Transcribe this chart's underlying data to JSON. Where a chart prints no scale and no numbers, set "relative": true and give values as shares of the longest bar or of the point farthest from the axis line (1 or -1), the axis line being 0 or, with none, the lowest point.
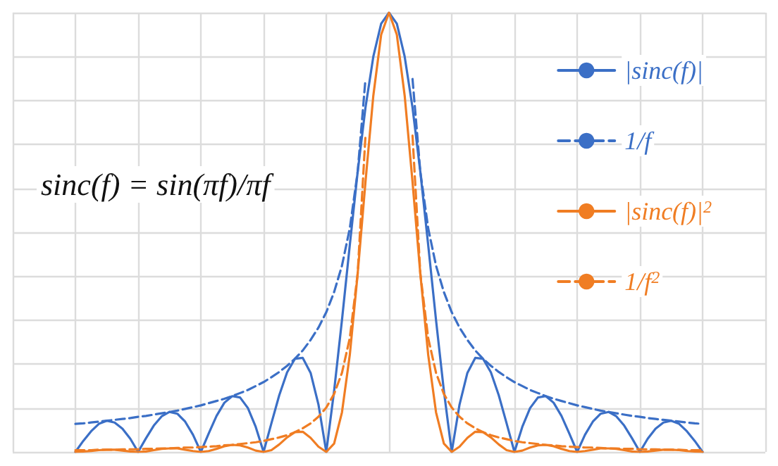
{
  "chart_data": {
    "type": "line",
    "relative": true,
    "grid": true,
    "legend": "right",
    "marker": "none",
    "categories": [
      null,
      null,
      null,
      null,
      null,
      null,
      null,
      null,
      null,
      null,
      null,
      null,
      null,
      null,
      null,
      null,
      null,
      null,
      null,
      null,
      null,
      null,
      null,
      null,
      null,
      null,
      null,
      null,
      null,
      null,
      null,
      null,
      null,
      null,
      null,
      null,
      null,
      null,
      null,
      null,
      null,
      null,
      null,
      null,
      null,
      null,
      null,
      null,
      null,
      null,
      null,
      null,
      null,
      null,
      null,
      null,
      null,
      null,
      null,
      null,
      null,
      null,
      null,
      null,
      null,
      null,
      null,
      null,
      null,
      null,
      null,
      null,
      null,
      null,
      null,
      null,
      null,
      null,
      null,
      null,
      null,
      null,
      null,
      null,
      null,
      null,
      null,
      null,
      null,
      null,
      null,
      null,
      null,
      null,
      null,
      null,
      null
    ],
    "annotations": [
      "sinc(f) = sin(πf)/πf"
    ],
    "series": [
      {
        "name": "|sinc(f)|",
        "color": "#3b6fc6",
        "line_style": "solid",
        "values": [
          null,
          null,
          null,
          null,
          null,
          null,
          null,
          null,
          0,
          0.025,
          0.047,
          0.064,
          0.071,
          0.067,
          0.053,
          0.03,
          0,
          0.031,
          0.06,
          0.081,
          0.091,
          0.087,
          0.069,
          0.039,
          0,
          0.042,
          0.082,
          0.112,
          0.127,
          0.124,
          0.1,
          0.057,
          0,
          0.065,
          0.129,
          0.181,
          0.212,
          0.214,
          0.18,
          0.108,
          0,
          0.139,
          0.3,
          0.471,
          0.637,
          0.784,
          0.9,
          0.975,
          1,
          0.975,
          0.9,
          0.784,
          0.637,
          0.471,
          0.3,
          0.139,
          0,
          0.108,
          0.18,
          0.214,
          0.212,
          0.181,
          0.129,
          0.065,
          0,
          0.057,
          0.1,
          0.124,
          0.127,
          0.112,
          0.082,
          0.042,
          0,
          0.039,
          0.069,
          0.087,
          0.091,
          0.081,
          0.06,
          0.031,
          0,
          0.03,
          0.053,
          0.067,
          0.071,
          0.064,
          0.047,
          0.025,
          0,
          null,
          null,
          null,
          null,
          null,
          null,
          null,
          null
        ]
      },
      {
        "name": "1/f",
        "color": "#3b6fc6",
        "line_style": "dashed",
        "values": [
          null,
          null,
          null,
          null,
          null,
          null,
          null,
          null,
          0.064,
          0.065,
          0.067,
          0.069,
          0.071,
          0.073,
          0.075,
          0.077,
          0.08,
          0.082,
          0.085,
          0.088,
          0.091,
          0.094,
          0.098,
          0.102,
          0.106,
          0.111,
          0.116,
          0.121,
          0.127,
          0.134,
          0.141,
          0.15,
          0.159,
          0.17,
          0.182,
          0.196,
          0.212,
          0.231,
          0.255,
          0.283,
          0.318,
          0.364,
          0.424,
          0.509,
          0.637,
          0.849,
          null,
          null,
          null,
          null,
          null,
          0.849,
          0.637,
          0.509,
          0.424,
          0.364,
          0.318,
          0.283,
          0.255,
          0.231,
          0.212,
          0.196,
          0.182,
          0.17,
          0.159,
          0.15,
          0.141,
          0.134,
          0.127,
          0.121,
          0.116,
          0.111,
          0.106,
          0.102,
          0.098,
          0.094,
          0.091,
          0.088,
          0.085,
          0.082,
          0.08,
          0.077,
          0.075,
          0.073,
          0.071,
          0.069,
          0.067,
          0.065,
          0.064,
          null,
          null,
          null,
          null,
          null,
          null,
          null,
          null
        ]
      },
      {
        "name": "|sinc(f)|$^{2}$",
        "color": "#f07d23",
        "line_style": "solid",
        "values": [
          null,
          null,
          null,
          null,
          null,
          null,
          null,
          null,
          0,
          0.001,
          0.002,
          0.004,
          0.005,
          0.005,
          0.003,
          0.001,
          0,
          0.001,
          0.004,
          0.007,
          0.008,
          0.008,
          0.005,
          0.002,
          0,
          0.002,
          0.007,
          0.013,
          0.016,
          0.015,
          0.01,
          0.003,
          0,
          0.004,
          0.017,
          0.033,
          0.045,
          0.046,
          0.032,
          0.012,
          0,
          0.019,
          0.09,
          0.221,
          0.405,
          0.615,
          0.811,
          0.95,
          1,
          0.95,
          0.811,
          0.615,
          0.405,
          0.221,
          0.09,
          0.019,
          0,
          0.012,
          0.032,
          0.046,
          0.045,
          0.033,
          0.017,
          0.004,
          0,
          0.003,
          0.01,
          0.015,
          0.016,
          0.013,
          0.007,
          0.002,
          0,
          0.002,
          0.005,
          0.008,
          0.008,
          0.007,
          0.004,
          0.001,
          0,
          0.001,
          0.003,
          0.005,
          0.005,
          0.004,
          0.002,
          0.001,
          0,
          null,
          null,
          null,
          null,
          null,
          null,
          null,
          null
        ]
      },
      {
        "name": "1/f$^{2}$",
        "color": "#f07d23",
        "line_style": "dashed",
        "values": [
          null,
          null,
          null,
          null,
          null,
          null,
          null,
          null,
          0.004,
          0.004,
          0.004,
          0.005,
          0.005,
          0.005,
          0.006,
          0.006,
          0.006,
          0.007,
          0.007,
          0.008,
          0.008,
          0.009,
          0.01,
          0.01,
          0.011,
          0.012,
          0.013,
          0.015,
          0.016,
          0.018,
          0.02,
          0.022,
          0.025,
          0.029,
          0.033,
          0.038,
          0.045,
          0.054,
          0.065,
          0.08,
          0.101,
          0.132,
          0.18,
          0.259,
          0.405,
          0.72,
          null,
          null,
          null,
          null,
          null,
          0.72,
          0.405,
          0.259,
          0.18,
          0.132,
          0.101,
          0.08,
          0.065,
          0.054,
          0.045,
          0.038,
          0.033,
          0.029,
          0.025,
          0.022,
          0.02,
          0.018,
          0.016,
          0.015,
          0.013,
          0.012,
          0.011,
          0.01,
          0.01,
          0.009,
          0.008,
          0.008,
          0.007,
          0.007,
          0.006,
          0.006,
          0.006,
          0.005,
          0.005,
          0.005,
          0.004,
          0.004,
          0.004,
          null,
          null,
          null,
          null,
          null,
          null,
          null,
          null
        ]
      }
    ]
  }
}
